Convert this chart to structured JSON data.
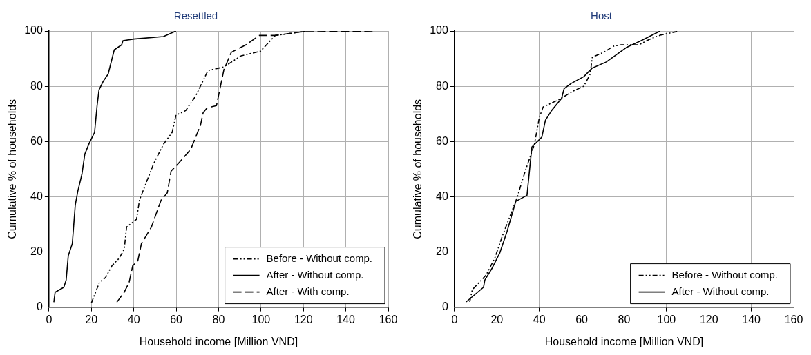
{
  "chart_data": [
    {
      "type": "line",
      "title": "Resettled",
      "xlabel": "Household income [Million VND]",
      "ylabel": "Cumulative % of households",
      "xlim": [
        0,
        160
      ],
      "xticks": [
        0,
        20,
        40,
        60,
        80,
        100,
        120,
        140,
        160
      ],
      "ylim": [
        0,
        100
      ],
      "yticks": [
        0,
        20,
        40,
        60,
        80,
        100
      ],
      "grid": true,
      "legend": "bottom right",
      "marker": "none",
      "series": [
        {
          "name": "Before - Without comp.",
          "color": "#000000",
          "line_style": "dashdot",
          "x": [
            20,
            23.8,
            26.7,
            29.7,
            33.1,
            35.5,
            36.6,
            41.3,
            42.7,
            44.8,
            49.4,
            54,
            58.1,
            59.9,
            64.5,
            69.2,
            75,
            82.5,
            90.6,
            99.8,
            106.7,
            119.3,
            121.6
          ],
          "values": [
            1.5,
            9,
            10.7,
            15,
            17.7,
            21,
            29,
            31.8,
            38.8,
            43,
            52,
            59,
            63.3,
            69.5,
            71.2,
            76.5,
            85.7,
            87,
            91,
            92.7,
            98.4,
            99.7,
            100
          ]
        },
        {
          "name": "After - Without comp.",
          "color": "#000000",
          "line_style": "solid",
          "x": [
            2.3,
            2.9,
            7,
            8.1,
            9.1,
            11,
            12.4,
            13.6,
            15.5,
            16.9,
            19,
            21.5,
            22.7,
            23.6,
            25.6,
            27.9,
            30.8,
            34.3,
            34.9,
            40,
            54,
            59.9
          ],
          "values": [
            1.8,
            5.4,
            7.2,
            9.8,
            18.6,
            23,
            37,
            42,
            48,
            55.4,
            59.4,
            63.3,
            73,
            78.7,
            81.8,
            84.4,
            93.2,
            95,
            96.5,
            97.1,
            98,
            100
          ]
        },
        {
          "name": "After - With comp.",
          "color": "#000000",
          "line_style": "dashed",
          "x": [
            32,
            35.5,
            37.8,
            39.5,
            41.9,
            43.6,
            48.3,
            52.9,
            55.8,
            57.6,
            61,
            66.9,
            71.5,
            72.7,
            74.5,
            79,
            82.5,
            86,
            92.9,
            99.2,
            106.7,
            119,
            152.6
          ],
          "values": [
            1.8,
            5.4,
            9,
            15,
            16.8,
            23,
            29,
            38.8,
            41.4,
            49.3,
            52,
            57.2,
            66,
            70.4,
            72.1,
            73,
            86,
            92.3,
            95,
            98.4,
            98.4,
            99.7,
            100
          ]
        }
      ]
    },
    {
      "type": "line",
      "title": "Host",
      "xlabel": "Household income [Million VND]",
      "ylabel": "Cumulative % of households",
      "xlim": [
        0,
        160
      ],
      "xticks": [
        0,
        20,
        40,
        60,
        80,
        100,
        120,
        140,
        160
      ],
      "ylim": [
        0,
        100
      ],
      "yticks": [
        0,
        20,
        40,
        60,
        80,
        100
      ],
      "grid": true,
      "legend": "bottom right",
      "marker": "none",
      "series": [
        {
          "name": "Before - Without comp.",
          "color": "#000000",
          "line_style": "dashdot",
          "x": [
            7.2,
            8.4,
            14.9,
            19,
            22.5,
            26,
            29.5,
            33,
            37.7,
            40,
            41.8,
            49.4,
            55.8,
            61,
            64,
            65,
            70.4,
            75,
            78.6,
            87,
            92,
            97,
            106
          ],
          "values": [
            1.9,
            6.3,
            11.6,
            17.7,
            25.6,
            32.6,
            39.6,
            48.4,
            59,
            68.6,
            72.5,
            75.2,
            78.2,
            80,
            84.4,
            90.5,
            92.3,
            94.5,
            95,
            95,
            97,
            98.5,
            100
          ]
        },
        {
          "name": "After - Without comp.",
          "color": "#000000",
          "line_style": "solid",
          "x": [
            5.5,
            13.7,
            14.3,
            17.8,
            21.3,
            24.8,
            28.9,
            34.2,
            36.5,
            41.2,
            42.9,
            45.8,
            50.5,
            51.7,
            55,
            61,
            65,
            71.6,
            81,
            88,
            97
          ],
          "values": [
            1.9,
            7.2,
            9.8,
            14.2,
            19.5,
            27.4,
            38.3,
            40.5,
            58,
            61.6,
            67.7,
            71.2,
            75.6,
            79.1,
            81,
            83.5,
            86.6,
            88.8,
            94,
            96.5,
            100
          ]
        }
      ]
    }
  ]
}
